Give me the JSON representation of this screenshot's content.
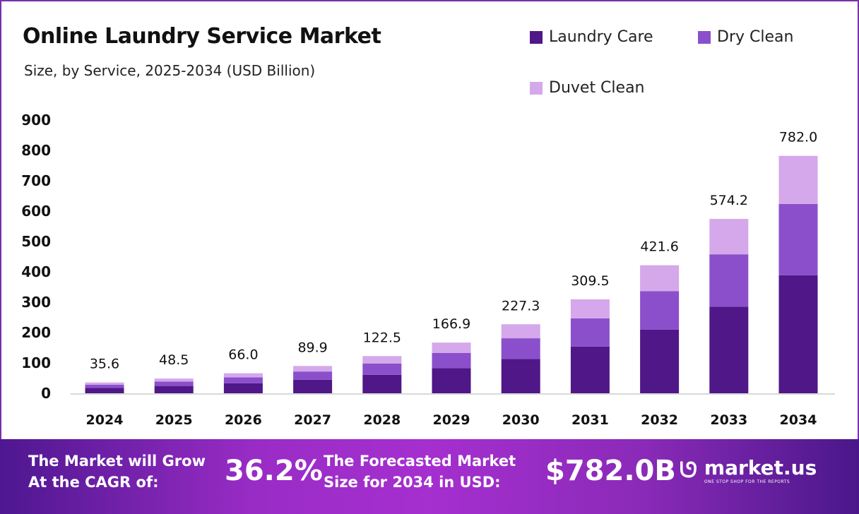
{
  "chart_data": {
    "type": "bar",
    "stacked": true,
    "title": "Online Laundry Service Market",
    "subtitle": "Size, by Service, 2025-2034 (USD Billion)",
    "categories": [
      "2024",
      "2025",
      "2026",
      "2027",
      "2028",
      "2029",
      "2030",
      "2031",
      "2032",
      "2033",
      "2034"
    ],
    "totals": [
      "35.6",
      "48.5",
      "66.0",
      "89.9",
      "122.5",
      "166.9",
      "227.3",
      "309.5",
      "421.6",
      "574.2",
      "782.0"
    ],
    "series": [
      {
        "name": "Laundry Care",
        "color": "#4f1787",
        "values": [
          17.7,
          24.1,
          32.8,
          44.7,
          60.9,
          83.0,
          113.0,
          153.8,
          209.5,
          285.4,
          388.7
        ]
      },
      {
        "name": "Dry Clean",
        "color": "#8b4fcb",
        "values": [
          10.7,
          14.6,
          19.8,
          27.0,
          36.8,
          50.1,
          68.2,
          92.9,
          126.5,
          172.3,
          234.6
        ]
      },
      {
        "name": "Duvet Clean",
        "color": "#d4a8ea",
        "values": [
          7.2,
          9.8,
          13.4,
          18.2,
          24.8,
          33.8,
          46.1,
          62.8,
          85.6,
          116.5,
          158.7
        ]
      }
    ],
    "yticks": [
      "0",
      "100",
      "200",
      "300",
      "400",
      "500",
      "600",
      "700",
      "800",
      "900"
    ],
    "ylim": [
      0,
      900
    ],
    "grid": false,
    "legend": "top-right"
  },
  "footer": {
    "cagr_label_1": "The Market will Grow",
    "cagr_label_2": "At the CAGR of:",
    "cagr_value": "36.2%",
    "forecast_label_1": "The Forecasted Market",
    "forecast_label_2": "Size for 2034 in USD:",
    "forecast_value": "$782.0B",
    "logo_name": "market.us",
    "logo_tagline": "ONE STOP SHOP FOR THE REPORTS"
  }
}
